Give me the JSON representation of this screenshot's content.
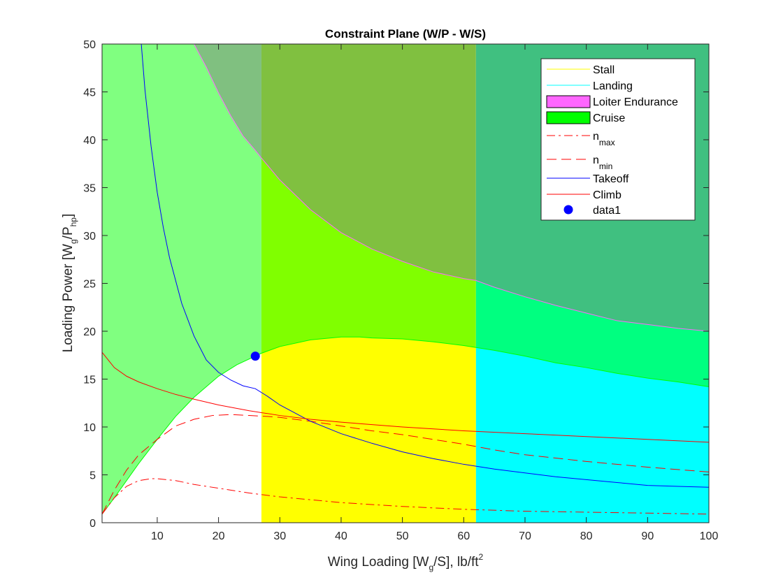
{
  "chart_data": {
    "type": "area",
    "title": "Constraint Plane (W/P - W/S)",
    "xlabel": {
      "pre": "Wing Loading [W",
      "sub": "g",
      "post": "/S], lb/ft",
      "sup": "2"
    },
    "ylabel": {
      "pre": "Loading Power [W",
      "sub": "g",
      "mid": "/P",
      "sub2": "hp",
      "post": "]"
    },
    "xlim": [
      1,
      100
    ],
    "ylim": [
      0,
      50
    ],
    "xticks": [
      10,
      20,
      30,
      40,
      50,
      60,
      70,
      80,
      90,
      100
    ],
    "yticks": [
      0,
      5,
      10,
      15,
      20,
      25,
      30,
      35,
      40,
      45,
      50
    ],
    "grid": false,
    "legend_position": "top-right",
    "regions": {
      "stall_x": 27,
      "landing_x": 62
    },
    "series": [
      {
        "name": "Stall",
        "name_sub": "",
        "kind": "line",
        "color": "#ffff00",
        "style": "solid",
        "legend_swatch": "line"
      },
      {
        "name": "Landing",
        "name_sub": "",
        "kind": "line",
        "color": "#00ffff",
        "style": "solid",
        "legend_swatch": "line"
      },
      {
        "name": "Loiter Endurance",
        "name_sub": "",
        "kind": "line",
        "color": "#ff66ff",
        "style": "solid",
        "legend_swatch": "patch",
        "x": [
          16,
          18,
          20,
          22,
          24,
          26,
          27,
          30,
          35,
          40,
          45,
          50,
          55,
          60,
          62,
          65,
          70,
          75,
          80,
          85,
          90,
          95,
          100
        ],
        "y": [
          50,
          47.6,
          44.9,
          42.5,
          40.4,
          38.9,
          38.1,
          35.8,
          32.7,
          30.3,
          28.6,
          27.3,
          26.2,
          25.5,
          25.3,
          24.6,
          23.6,
          22.7,
          21.9,
          21.1,
          20.7,
          20.3,
          20
        ]
      },
      {
        "name": "Cruise",
        "name_sub": "",
        "kind": "line",
        "color": "#00ff00",
        "style": "solid",
        "legend_swatch": "patch",
        "x": [
          1,
          3,
          5,
          7,
          10,
          13,
          16,
          20,
          23,
          26,
          27,
          30,
          35,
          40,
          43,
          45,
          50,
          55,
          60,
          62,
          65,
          70,
          75,
          80,
          85,
          90,
          95,
          100
        ],
        "y": [
          0.9,
          2.6,
          4.4,
          6.2,
          8.7,
          11.1,
          13.1,
          15.3,
          16.5,
          17.4,
          17.7,
          18.4,
          19.1,
          19.4,
          19.4,
          19.3,
          19.2,
          18.9,
          18.5,
          18.3,
          18,
          17.4,
          16.7,
          16.2,
          15.6,
          15.1,
          14.7,
          14.2
        ]
      },
      {
        "name": "n",
        "name_sub": "max",
        "kind": "line",
        "color": "#ff0000",
        "style": "dashdot",
        "legend_swatch": "line",
        "x": [
          1,
          3,
          5,
          7,
          9,
          10,
          13,
          16,
          20,
          25,
          30,
          40,
          50,
          60,
          70,
          80,
          90,
          100
        ],
        "y": [
          0.9,
          2.6,
          3.8,
          4.4,
          4.6,
          4.6,
          4.4,
          4,
          3.6,
          3.1,
          2.7,
          2.1,
          1.7,
          1.4,
          1.2,
          1.1,
          1,
          0.9
        ]
      },
      {
        "name": "n",
        "name_sub": "min",
        "kind": "line",
        "color": "#ff0000",
        "style": "dashed",
        "legend_swatch": "line",
        "x": [
          1,
          3,
          5,
          7,
          10,
          13,
          16,
          19,
          22,
          25,
          28,
          30,
          35,
          40,
          45,
          50,
          55,
          60,
          65,
          70,
          80,
          90,
          100
        ],
        "y": [
          0.9,
          3.4,
          5.5,
          7.1,
          8.7,
          10.1,
          10.8,
          11.2,
          11.3,
          11.2,
          11.1,
          11,
          10.6,
          10.1,
          9.6,
          9.2,
          8.7,
          8.2,
          7.6,
          7.1,
          6.4,
          5.8,
          5.3
        ]
      },
      {
        "name": "Takeoff",
        "name_sub": "",
        "kind": "line",
        "color": "#0000ff",
        "style": "solid",
        "legend_swatch": "line",
        "x": [
          7.4,
          8,
          9,
          10,
          11,
          12,
          14,
          16,
          18,
          20,
          22,
          24,
          26,
          28,
          30,
          35,
          40,
          45,
          50,
          55,
          60,
          65,
          70,
          75,
          80,
          85,
          90,
          95,
          100
        ],
        "y": [
          50,
          45.2,
          39.3,
          34.5,
          30.8,
          27.7,
          22.9,
          19.5,
          17,
          15.7,
          14.9,
          14.3,
          14,
          13.2,
          12.3,
          10.6,
          9.3,
          8.3,
          7.4,
          6.7,
          6.1,
          5.6,
          5.2,
          4.8,
          4.5,
          4.2,
          3.9,
          3.8,
          3.7
        ]
      },
      {
        "name": "Climb",
        "name_sub": "",
        "kind": "line",
        "color": "#ff0000",
        "style": "solid",
        "legend_swatch": "line",
        "x": [
          1,
          3,
          5,
          7,
          10,
          13,
          16,
          20,
          25,
          30,
          35,
          40,
          50,
          60,
          70,
          80,
          90,
          100
        ],
        "y": [
          17.8,
          16.2,
          15.3,
          14.7,
          14,
          13.4,
          12.9,
          12.3,
          11.7,
          11.2,
          10.8,
          10.5,
          10,
          9.6,
          9.3,
          9,
          8.7,
          8.4
        ]
      },
      {
        "name": "data1",
        "name_sub": "",
        "kind": "marker",
        "color": "#0000ff",
        "style": "marker",
        "legend_swatch": "marker",
        "x": [
          26
        ],
        "y": [
          17.4
        ]
      }
    ]
  }
}
